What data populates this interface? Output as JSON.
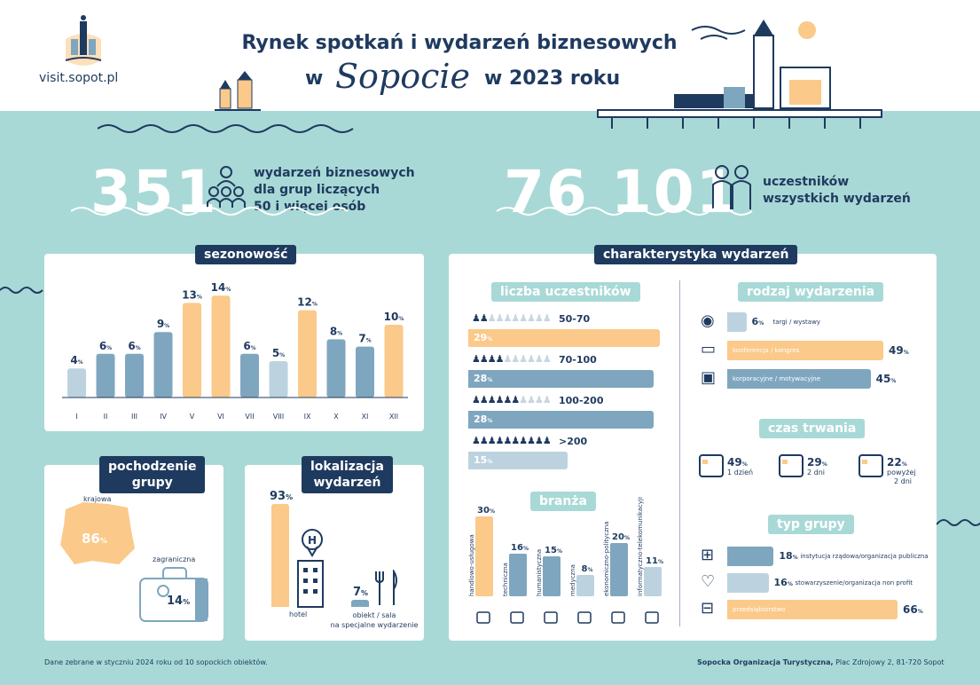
{
  "header": {
    "site": "visit.sopot.pl",
    "title_line1": "Rynek spotkań i wydarzeń biznesowych",
    "title_w": "w",
    "title_city": "Sopocie",
    "title_year": "w 2023 roku"
  },
  "stats": {
    "events_num": "351",
    "events_text1": "wydarzeń biznesowych",
    "events_text2": "dla grup liczących",
    "events_text3": "50 i więcej osób",
    "participants_num": "76 101",
    "participants_text1": "uczestników",
    "participants_text2": "wszystkich wydarzeń"
  },
  "colors": {
    "navy": "#1f3a5f",
    "blue": "#7fa6bf",
    "light": "#bcd3df",
    "orange": "#fbc98a",
    "teal": "#a8d9d6"
  },
  "season": {
    "title": "sezonowość",
    "suffix": "%"
  },
  "origin": {
    "title1": "pochodzenie",
    "title2": "grupy",
    "domestic_label": "krajowa",
    "domestic_value": "86",
    "foreign_label": "zagraniczna",
    "foreign_value": "14",
    "pct": "%"
  },
  "location": {
    "title1": "lokalizacja",
    "title2": "wydarzeń",
    "hotel_value": "93",
    "hotel_label": "hotel",
    "other_value": "7",
    "other_label1": "obiekt / sala",
    "other_label2": "na specjalne wydarzenie",
    "pct": "%"
  },
  "char": {
    "title": "charakterystyka wydarzeń",
    "participants_title": "liczba uczestników",
    "industry_title": "branża",
    "type_title": "rodzaj wydarzenia",
    "duration_title": "czas trwania",
    "group_title": "typ grupy"
  },
  "participants": [
    {
      "range": "50-70",
      "value": 29,
      "color": "#fbc98a",
      "icons": 2
    },
    {
      "range": "70-100",
      "value": 28,
      "color": "#7fa6bf",
      "icons": 4
    },
    {
      "range": "100-200",
      "value": 28,
      "color": "#7fa6bf",
      "icons": 6
    },
    {
      "range": ">200",
      "value": 15,
      "color": "#bcd3df",
      "icons": 10
    }
  ],
  "event_types": [
    {
      "label": "targi / wystawy",
      "value": "6",
      "color": "#bcd3df"
    },
    {
      "label": "konferencja / kongres",
      "value": "49",
      "color": "#fbc98a"
    },
    {
      "label": "korporacyjne / motywacyjne",
      "value": "45",
      "color": "#7fa6bf"
    }
  ],
  "durations": [
    {
      "value": "49",
      "l1": "1 dzień",
      "l2": ""
    },
    {
      "value": "29",
      "l1": "2 dni",
      "l2": ""
    },
    {
      "value": "22",
      "l1": "powyżej",
      "l2": "2 dni"
    }
  ],
  "groups": [
    {
      "label": "instytucja rządowa/organizacja publiczna",
      "value": "18",
      "color": "#7fa6bf"
    },
    {
      "label": "stowarzyszenie/organizacja non profit",
      "value": "16",
      "color": "#bcd3df"
    },
    {
      "label": "przedsiębiorstwo",
      "value": "66",
      "color": "#fbc98a"
    }
  ],
  "footer": {
    "left": "Dane zebrane w styczniu 2024 roku od 10 sopockich obiektów.",
    "org": "Sopocka Organizacja Turystyczna,",
    "address": "Plac Zdrojowy 2, 81-720 Sopot"
  },
  "chart_data": [
    {
      "type": "bar",
      "title": "sezonowość",
      "categories": [
        "I",
        "II",
        "III",
        "IV",
        "V",
        "VI",
        "VII",
        "VIII",
        "IX",
        "X",
        "XI",
        "XII"
      ],
      "values": [
        4,
        6,
        6,
        9,
        13,
        14,
        6,
        5,
        12,
        8,
        7,
        10
      ],
      "unit": "%"
    },
    {
      "type": "bar",
      "title": "liczba uczestników",
      "categories": [
        "50-70",
        "70-100",
        "100-200",
        ">200"
      ],
      "values": [
        29,
        28,
        28,
        15
      ],
      "unit": "%"
    },
    {
      "type": "bar",
      "title": "branża",
      "categories": [
        "handlowo-usługowa",
        "techniczna",
        "humanistyczna",
        "medyczna",
        "ekonomiczno-polityczna",
        "informatyczno-telekomunikacyjna"
      ],
      "values": [
        30,
        16,
        15,
        8,
        20,
        11
      ],
      "unit": "%"
    },
    {
      "type": "bar",
      "title": "rodzaj wydarzenia",
      "categories": [
        "targi / wystawy",
        "konferencja / kongres",
        "korporacyjne / motywacyjne"
      ],
      "values": [
        6,
        49,
        45
      ],
      "unit": "%"
    },
    {
      "type": "bar",
      "title": "typ grupy",
      "categories": [
        "instytucja rządowa/organizacja publiczna",
        "stowarzyszenie/organizacja non profit",
        "przedsiębiorstwo"
      ],
      "values": [
        18,
        16,
        66
      ],
      "unit": "%"
    },
    {
      "type": "pie",
      "title": "pochodzenie grupy",
      "categories": [
        "krajowa",
        "zagraniczna"
      ],
      "values": [
        86,
        14
      ],
      "unit": "%"
    },
    {
      "type": "bar",
      "title": "lokalizacja wydarzeń",
      "categories": [
        "hotel",
        "obiekt / sala na specjalne wydarzenie"
      ],
      "values": [
        93,
        7
      ],
      "unit": "%"
    },
    {
      "type": "bar",
      "title": "czas trwania",
      "categories": [
        "1 dzień",
        "2 dni",
        "powyżej 2 dni"
      ],
      "values": [
        49,
        29,
        22
      ],
      "unit": "%"
    }
  ]
}
